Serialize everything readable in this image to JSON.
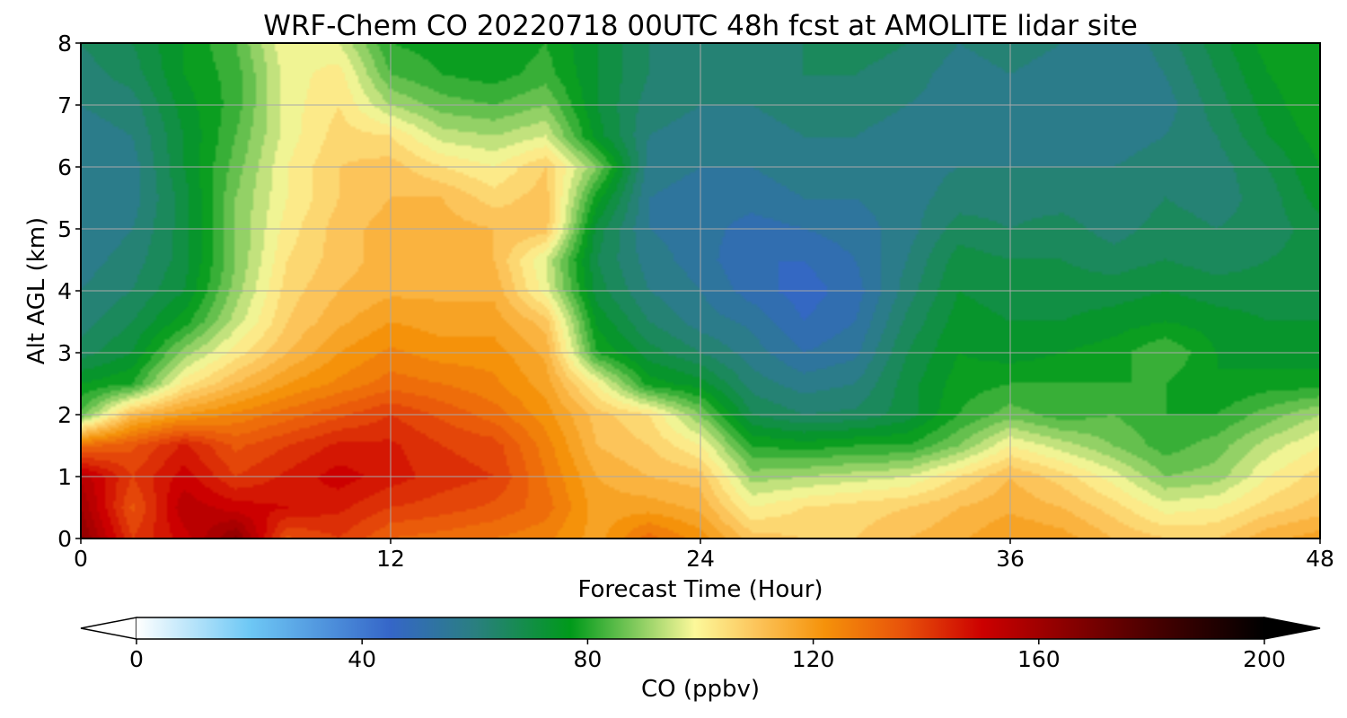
{
  "chart_data": {
    "type": "heatmap",
    "title": "WRF-Chem CO  20220718 00UTC 48h fcst at AMOLITE lidar site",
    "xlabel": "Forecast Time (Hour)",
    "ylabel": "Alt AGL (km)",
    "xlim": [
      0,
      48
    ],
    "ylim": [
      0,
      8
    ],
    "xticks": [
      "0",
      "12",
      "24",
      "36",
      "48"
    ],
    "yticks": [
      "0",
      "1",
      "2",
      "3",
      "4",
      "5",
      "6",
      "7",
      "8"
    ],
    "grid": true,
    "colorbar": {
      "label": "CO  (ppbv)",
      "range": [
        0,
        200
      ],
      "ticks": [
        "0",
        "40",
        "80",
        "120",
        "160",
        "200"
      ],
      "extend": "both",
      "orientation": "horizontal",
      "stops": [
        {
          "v": 0,
          "color": "#ffffff"
        },
        {
          "v": 20,
          "color": "#6ec8f5"
        },
        {
          "v": 45,
          "color": "#3566c8"
        },
        {
          "v": 60,
          "color": "#2a7f80"
        },
        {
          "v": 77,
          "color": "#009a1a"
        },
        {
          "v": 88,
          "color": "#7cc85a"
        },
        {
          "v": 99,
          "color": "#fcf89a"
        },
        {
          "v": 110,
          "color": "#fcc45a"
        },
        {
          "v": 122,
          "color": "#f5920a"
        },
        {
          "v": 136,
          "color": "#e8520a"
        },
        {
          "v": 150,
          "color": "#cc0000"
        },
        {
          "v": 165,
          "color": "#8a0000"
        },
        {
          "v": 180,
          "color": "#4a0000"
        },
        {
          "v": 200,
          "color": "#000000"
        }
      ]
    },
    "x": [
      0,
      2,
      4,
      6,
      8,
      10,
      12,
      14,
      16,
      18,
      20,
      22,
      24,
      26,
      28,
      30,
      32,
      34,
      36,
      38,
      40,
      42,
      44,
      46,
      48
    ],
    "y": [
      0,
      0.5,
      1,
      1.5,
      2,
      2.5,
      3,
      3.5,
      4,
      4.5,
      5,
      5.5,
      6,
      6.5,
      7,
      7.5,
      8
    ],
    "values": [
      [
        165,
        140,
        150,
        165,
        135,
        140,
        132,
        130,
        128,
        125,
        118,
        130,
        122,
        110,
        108,
        108,
        112,
        115,
        120,
        118,
        112,
        108,
        108,
        115,
        118
      ],
      [
        160,
        135,
        155,
        150,
        148,
        145,
        140,
        138,
        135,
        130,
        118,
        118,
        115,
        100,
        104,
        106,
        108,
        112,
        115,
        112,
        106,
        98,
        100,
        106,
        110
      ],
      [
        155,
        140,
        150,
        140,
        145,
        150,
        146,
        142,
        140,
        128,
        116,
        112,
        110,
        90,
        92,
        94,
        96,
        104,
        112,
        106,
        98,
        88,
        90,
        100,
        106
      ],
      [
        130,
        135,
        145,
        135,
        140,
        145,
        145,
        140,
        138,
        126,
        112,
        108,
        100,
        80,
        78,
        80,
        80,
        88,
        100,
        94,
        88,
        82,
        86,
        94,
        100
      ],
      [
        85,
        112,
        120,
        125,
        130,
        135,
        140,
        135,
        130,
        122,
        110,
        104,
        88,
        68,
        64,
        65,
        70,
        80,
        86,
        82,
        84,
        80,
        80,
        86,
        92
      ],
      [
        76,
        80,
        102,
        112,
        120,
        125,
        130,
        128,
        125,
        118,
        100,
        78,
        74,
        62,
        58,
        60,
        70,
        78,
        80,
        80,
        80,
        80,
        76,
        78,
        78
      ],
      [
        66,
        72,
        90,
        102,
        112,
        120,
        125,
        122,
        122,
        115,
        80,
        70,
        64,
        58,
        52,
        55,
        68,
        76,
        74,
        76,
        78,
        84,
        76,
        74,
        74
      ],
      [
        62,
        68,
        78,
        94,
        108,
        115,
        120,
        118,
        118,
        110,
        75,
        64,
        58,
        55,
        48,
        52,
        65,
        74,
        72,
        72,
        74,
        76,
        74,
        72,
        72
      ],
      [
        60,
        64,
        72,
        90,
        106,
        112,
        115,
        115,
        115,
        98,
        70,
        60,
        56,
        50,
        46,
        50,
        62,
        72,
        70,
        70,
        70,
        72,
        70,
        70,
        70
      ],
      [
        58,
        62,
        70,
        88,
        104,
        110,
        114,
        114,
        112,
        96,
        68,
        58,
        54,
        48,
        48,
        52,
        60,
        70,
        68,
        68,
        66,
        68,
        66,
        68,
        70
      ],
      [
        56,
        60,
        70,
        88,
        102,
        110,
        114,
        114,
        112,
        110,
        70,
        56,
        54,
        50,
        52,
        54,
        58,
        66,
        64,
        66,
        62,
        66,
        64,
        66,
        70
      ],
      [
        56,
        58,
        70,
        88,
        100,
        108,
        112,
        112,
        106,
        110,
        78,
        56,
        54,
        54,
        56,
        56,
        58,
        62,
        62,
        62,
        60,
        64,
        62,
        66,
        74
      ],
      [
        56,
        58,
        72,
        86,
        100,
        108,
        110,
        104,
        100,
        108,
        88,
        58,
        56,
        56,
        58,
        58,
        58,
        60,
        60,
        60,
        60,
        62,
        62,
        68,
        76
      ],
      [
        58,
        60,
        72,
        84,
        98,
        106,
        104,
        94,
        92,
        96,
        74,
        60,
        58,
        58,
        60,
        60,
        58,
        58,
        58,
        58,
        58,
        60,
        64,
        72,
        78
      ],
      [
        60,
        62,
        74,
        82,
        98,
        104,
        92,
        86,
        84,
        88,
        72,
        62,
        60,
        60,
        62,
        62,
        60,
        58,
        58,
        58,
        56,
        58,
        66,
        74,
        80
      ],
      [
        62,
        66,
        76,
        82,
        98,
        102,
        84,
        80,
        78,
        82,
        72,
        64,
        62,
        62,
        64,
        64,
        62,
        58,
        60,
        58,
        56,
        60,
        68,
        76,
        80
      ],
      [
        64,
        68,
        76,
        84,
        100,
        96,
        80,
        78,
        76,
        80,
        72,
        64,
        64,
        64,
        64,
        66,
        64,
        60,
        62,
        60,
        56,
        62,
        70,
        78,
        80
      ]
    ]
  }
}
